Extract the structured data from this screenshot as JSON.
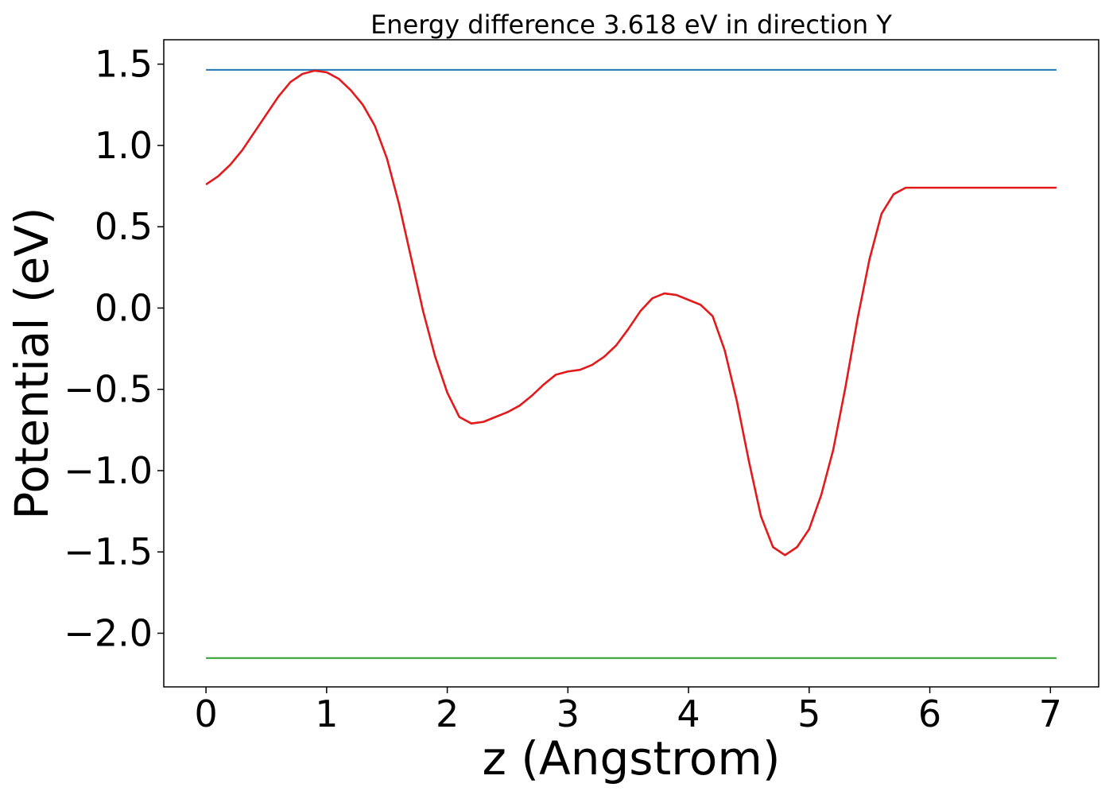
{
  "chart_data": {
    "type": "line",
    "title": "Energy difference 3.618 eV in direction Y",
    "xlabel": "z (Angstrom)",
    "ylabel": "Potential (eV)",
    "xlim": [
      -0.35,
      7.4
    ],
    "ylim": [
      -2.33,
      1.65
    ],
    "xticks": [
      0,
      1,
      2,
      3,
      4,
      5,
      6,
      7
    ],
    "xtick_labels": [
      "0",
      "1",
      "2",
      "3",
      "4",
      "5",
      "6",
      "7"
    ],
    "yticks": [
      1.5,
      1.0,
      0.5,
      0.0,
      -0.5,
      -1.0,
      -1.5,
      -2.0
    ],
    "ytick_labels": [
      "1.5",
      "1.0",
      "0.5",
      "0.0",
      "−0.5",
      "−1.0",
      "−1.5",
      "−2.0"
    ],
    "grid": false,
    "series": [
      {
        "color": "#1f77b4",
        "x": [
          0,
          7.05
        ],
        "y": [
          1.465,
          1.465
        ]
      },
      {
        "color": "#2ca02c",
        "x": [
          0,
          7.05
        ],
        "y": [
          -2.153,
          -2.153
        ]
      },
      {
        "color": "#e31a1c",
        "x": [
          0,
          0.1,
          0.2,
          0.3,
          0.4,
          0.5,
          0.6,
          0.7,
          0.8,
          0.9,
          1.0,
          1.1,
          1.2,
          1.3,
          1.4,
          1.5,
          1.6,
          1.7,
          1.8,
          1.9,
          2.0,
          2.1,
          2.2,
          2.3,
          2.4,
          2.5,
          2.6,
          2.7,
          2.8,
          2.9,
          3.0,
          3.1,
          3.2,
          3.3,
          3.4,
          3.5,
          3.6,
          3.7,
          3.8,
          3.9,
          4.0,
          4.1,
          4.2,
          4.3,
          4.4,
          4.5,
          4.6,
          4.7,
          4.8,
          4.9,
          5.0,
          5.1,
          5.2,
          5.3,
          5.4,
          5.5,
          5.6,
          5.7,
          5.8,
          5.9,
          6.0,
          6.1,
          6.2,
          6.3,
          6.4,
          6.5,
          6.6,
          6.7,
          6.8,
          6.9,
          7.0,
          7.05
        ],
        "y": [
          0.76,
          0.81,
          0.88,
          0.97,
          1.08,
          1.19,
          1.3,
          1.39,
          1.44,
          1.46,
          1.45,
          1.41,
          1.34,
          1.25,
          1.12,
          0.92,
          0.64,
          0.31,
          -0.02,
          -0.3,
          -0.52,
          -0.67,
          -0.71,
          -0.7,
          -0.67,
          -0.64,
          -0.6,
          -0.54,
          -0.47,
          -0.41,
          -0.39,
          -0.38,
          -0.35,
          -0.3,
          -0.23,
          -0.13,
          -0.02,
          0.06,
          0.09,
          0.08,
          0.05,
          0.02,
          -0.05,
          -0.26,
          -0.57,
          -0.94,
          -1.28,
          -1.47,
          -1.52,
          -1.47,
          -1.36,
          -1.15,
          -0.87,
          -0.49,
          -0.07,
          0.3,
          0.58,
          0.7,
          0.74,
          0.74,
          0.74,
          0.74,
          0.74,
          0.74,
          0.74,
          0.74,
          0.74,
          0.74,
          0.74,
          0.74,
          0.74,
          0.74
        ]
      }
    ]
  }
}
